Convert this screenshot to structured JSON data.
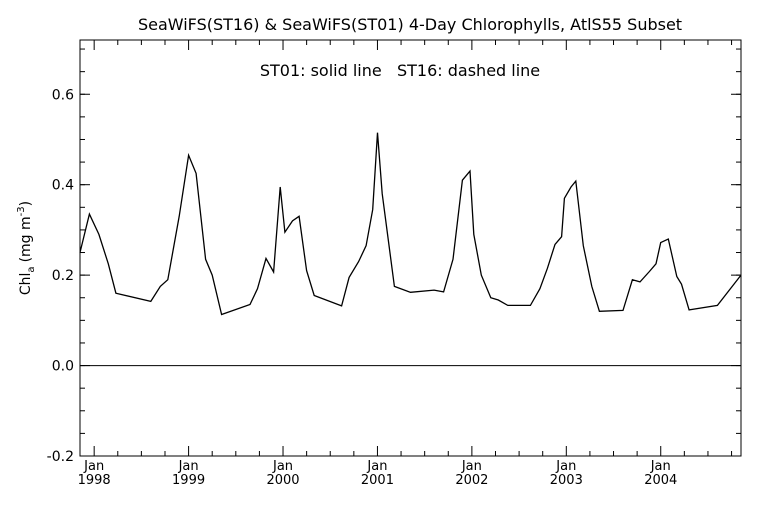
{
  "chart_data": {
    "type": "line",
    "title": "SeaWiFS(ST16) & SeaWiFS(ST01) 4-Day Chlorophylls, AtlS55 Subset",
    "annotation": "ST01: solid line   ST16: dashed line",
    "xlabel": "",
    "ylabel": "Chl",
    "ylabel_subscript": "a",
    "ylabel_units": "(mg m",
    "ylabel_units_exp": "-3",
    "ylabel_units_close": ")",
    "ylim": [
      -0.2,
      0.72
    ],
    "xlim": [
      1997.85,
      2004.85
    ],
    "y_ticks": [
      {
        "value": -0.2,
        "label": "-0.2"
      },
      {
        "value": 0.0,
        "label": "0.0"
      },
      {
        "value": 0.2,
        "label": "0.2"
      },
      {
        "value": 0.4,
        "label": "0.4"
      },
      {
        "value": 0.6,
        "label": "0.6"
      }
    ],
    "x_ticks": [
      {
        "value": 1998,
        "month": "Jan",
        "year": "1998"
      },
      {
        "value": 1999,
        "month": "Jan",
        "year": "1999"
      },
      {
        "value": 2000,
        "month": "Jan",
        "year": "2000"
      },
      {
        "value": 2001,
        "month": "Jan",
        "year": "2001"
      },
      {
        "value": 2002,
        "month": "Jan",
        "year": "2002"
      },
      {
        "value": 2003,
        "month": "Jan",
        "year": "2003"
      },
      {
        "value": 2004,
        "month": "Jan",
        "year": "2004"
      }
    ],
    "zero_line": 0.0,
    "grid": false,
    "series": [
      {
        "name": "ST01",
        "style": "solid",
        "color": "#000000",
        "points": [
          [
            1997.85,
            0.25
          ],
          [
            1997.95,
            0.335
          ],
          [
            1998.05,
            0.29
          ],
          [
            1998.15,
            0.225
          ],
          [
            1998.23,
            0.16
          ],
          [
            1998.6,
            0.142
          ],
          [
            1998.7,
            0.175
          ],
          [
            1998.78,
            0.19
          ],
          [
            1998.9,
            0.33
          ],
          [
            1999.0,
            0.465
          ],
          [
            1999.08,
            0.425
          ],
          [
            1999.18,
            0.235
          ],
          [
            1999.25,
            0.2
          ],
          [
            1999.35,
            0.113
          ],
          [
            1999.65,
            0.135
          ],
          [
            1999.73,
            0.17
          ],
          [
            1999.82,
            0.237
          ],
          [
            1999.9,
            0.207
          ],
          [
            1999.97,
            0.395
          ],
          [
            2000.02,
            0.295
          ],
          [
            2000.1,
            0.32
          ],
          [
            2000.17,
            0.33
          ],
          [
            2000.25,
            0.21
          ],
          [
            2000.33,
            0.155
          ],
          [
            2000.62,
            0.132
          ],
          [
            2000.7,
            0.195
          ],
          [
            2000.8,
            0.23
          ],
          [
            2000.88,
            0.265
          ],
          [
            2000.95,
            0.345
          ],
          [
            2001.0,
            0.515
          ],
          [
            2001.05,
            0.38
          ],
          [
            2001.18,
            0.175
          ],
          [
            2001.35,
            0.162
          ],
          [
            2001.6,
            0.167
          ],
          [
            2001.7,
            0.163
          ],
          [
            2001.8,
            0.235
          ],
          [
            2001.9,
            0.41
          ],
          [
            2001.98,
            0.43
          ],
          [
            2002.02,
            0.29
          ],
          [
            2002.1,
            0.2
          ],
          [
            2002.2,
            0.15
          ],
          [
            2002.28,
            0.145
          ],
          [
            2002.38,
            0.133
          ],
          [
            2002.62,
            0.133
          ],
          [
            2002.72,
            0.17
          ],
          [
            2002.8,
            0.215
          ],
          [
            2002.88,
            0.268
          ],
          [
            2002.95,
            0.285
          ],
          [
            2002.98,
            0.37
          ],
          [
            2003.05,
            0.395
          ],
          [
            2003.1,
            0.408
          ],
          [
            2003.18,
            0.265
          ],
          [
            2003.27,
            0.175
          ],
          [
            2003.35,
            0.12
          ],
          [
            2003.6,
            0.122
          ],
          [
            2003.7,
            0.19
          ],
          [
            2003.78,
            0.185
          ],
          [
            2003.88,
            0.208
          ],
          [
            2003.95,
            0.225
          ],
          [
            2004.0,
            0.272
          ],
          [
            2004.08,
            0.28
          ],
          [
            2004.17,
            0.197
          ],
          [
            2004.22,
            0.18
          ],
          [
            2004.3,
            0.123
          ],
          [
            2004.6,
            0.133
          ],
          [
            2004.85,
            0.2
          ]
        ]
      }
    ]
  }
}
